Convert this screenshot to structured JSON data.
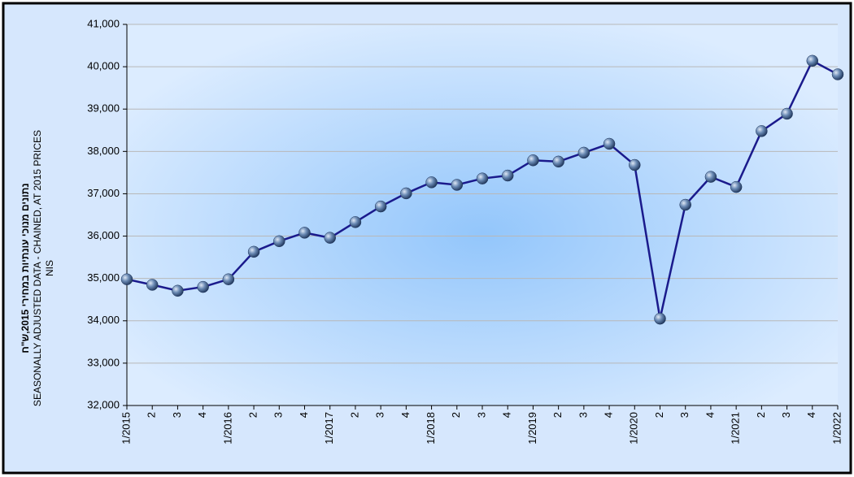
{
  "chart_data": {
    "type": "line",
    "ylabel_lines": [
      "נתונים מנוכי עונתיות במחירי 2015,ש\"ח",
      "SEASONALLY  ADJUSTED DATA  - CHAINED, AT 2015  PRICES",
      "NIS"
    ],
    "categories": [
      "1/2015",
      "2",
      "3",
      "4",
      "1/2016",
      "2",
      "3",
      "4",
      "1/2017",
      "2",
      "3",
      "4",
      "1/2018",
      "2",
      "3",
      "4",
      "1/2019",
      "2",
      "3",
      "4",
      "1/2020",
      "2",
      "3",
      "4",
      "1/2021",
      "2",
      "3",
      "4",
      "1/2022"
    ],
    "series": [
      {
        "color": "#1a1a8c",
        "values": [
          34980,
          34850,
          34710,
          34800,
          34980,
          35630,
          35880,
          36080,
          35960,
          36330,
          36700,
          37010,
          37270,
          37210,
          37360,
          37430,
          37790,
          37760,
          37970,
          38180,
          37680,
          34050,
          36740,
          37400,
          37160,
          38480,
          38890,
          40140,
          39820
        ]
      }
    ],
    "ylim": [
      32000,
      41000
    ],
    "yticks": [
      {
        "value": 32000,
        "label": "32,000"
      },
      {
        "value": 33000,
        "label": "33,000"
      },
      {
        "value": 34000,
        "label": "34,000"
      },
      {
        "value": 35000,
        "label": "35,000"
      },
      {
        "value": 36000,
        "label": "36,000"
      },
      {
        "value": 37000,
        "label": "37,000"
      },
      {
        "value": 38000,
        "label": "38,000"
      },
      {
        "value": 39000,
        "label": "39,000"
      },
      {
        "value": 40000,
        "label": "40,000"
      },
      {
        "value": 41000,
        "label": "41,000"
      }
    ],
    "grid": true
  }
}
